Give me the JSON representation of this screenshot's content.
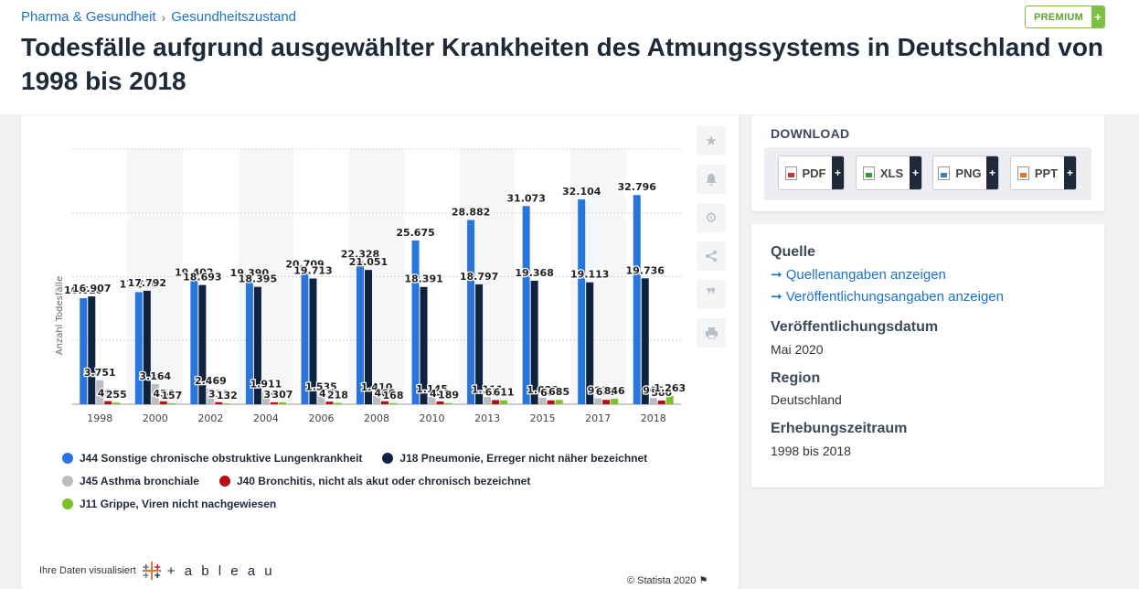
{
  "breadcrumb": {
    "first": "Pharma & Gesundheit",
    "second": "Gesundheitszustand",
    "separator": "›"
  },
  "premium": {
    "label": "PREMIUM",
    "plus": "+"
  },
  "title": "Todesfälle aufgrund ausgewählter Krankheiten des Atmungssystems in Deutschland von 1998 bis 2018",
  "chart_data": {
    "type": "bar",
    "title": "",
    "xlabel": "",
    "ylabel": "Anzahl Todesfälle",
    "ylim": [
      0,
      40000
    ],
    "grid": true,
    "categories": [
      "1998",
      "2000",
      "2002",
      "2004",
      "2006",
      "2008",
      "2010",
      "2013",
      "2015",
      "2017",
      "2018"
    ],
    "series": [
      {
        "name": "J44 Sonstige chronische obstruktive Lungenkrankheit",
        "color": "#2876dd",
        "values": [
          16620,
          17570,
          19402,
          19390,
          20709,
          22328,
          25675,
          28882,
          31073,
          32104,
          32796
        ],
        "labels": [
          "16.620",
          "17.570",
          "19.402",
          "19.390",
          "20.709",
          "22.328",
          "25.675",
          "28.882",
          "31.073",
          "32.104",
          "32.796"
        ]
      },
      {
        "name": "J18 Pneumonie, Erreger nicht näher bezeichnet",
        "color": "#0f2341",
        "values": [
          16907,
          17792,
          18693,
          18395,
          19713,
          21051,
          18391,
          18797,
          19368,
          19113,
          19736
        ],
        "labels": [
          "16.907",
          "17.792",
          "18.693",
          "18.395",
          "19.713",
          "21.051",
          "18.391",
          "18.797",
          "19.368",
          "19.113",
          "19.736"
        ]
      },
      {
        "name": "J45 Asthma bronchiale",
        "color": "#b9bcc0",
        "values": [
          3751,
          3164,
          2469,
          1911,
          1535,
          1410,
          1145,
          1111,
          1022,
          923,
          966
        ],
        "labels": [
          "3.751",
          "3.164",
          "2.469",
          "1.911",
          "1.535",
          "1.410",
          "1.145",
          "1.111",
          "1.022",
          "923",
          "966"
        ]
      },
      {
        "name": "J40 Bronchitis, nicht als akut oder chronisch bezeichnet",
        "color": "#b01116",
        "values": [
          491,
          454,
          331,
          303,
          411,
          466,
          441,
          651,
          606,
          688,
          580
        ],
        "labels": [
          "491",
          "454",
          "331",
          "303",
          "411",
          "466",
          "441",
          "651",
          "606",
          "688",
          "580"
        ]
      },
      {
        "name": "J11 Grippe, Viren nicht nachgewiesen",
        "color": "#7fbf2a",
        "values": [
          255,
          157,
          132,
          307,
          218,
          168,
          189,
          611,
          685,
          846,
          1263
        ],
        "labels": [
          "255",
          "157",
          "132",
          "307",
          "218",
          "168",
          "189",
          "611",
          "685",
          "846",
          "1.263"
        ]
      }
    ]
  },
  "footer": {
    "visualized": "Ihre Daten visualisiert",
    "brand": "+ a b l e a u",
    "copyright": "© Statista 2020"
  },
  "download": {
    "title": "DOWNLOAD",
    "buttons": [
      {
        "label": "PDF",
        "icon": "pdf-file-icon"
      },
      {
        "label": "XLS",
        "icon": "xls-file-icon"
      },
      {
        "label": "PNG",
        "icon": "png-file-icon"
      },
      {
        "label": "PPT",
        "icon": "ppt-file-icon"
      }
    ],
    "plus": "+"
  },
  "info": {
    "source_heading": "Quelle",
    "source_link": "➞ Quellenangaben anzeigen",
    "publication_link": "➞ Veröffentlichungsangaben anzeigen",
    "date_heading": "Veröffentlichungsdatum",
    "date_value": "Mai 2020",
    "region_heading": "Region",
    "region_value": "Deutschland",
    "period_heading": "Erhebungszeitraum",
    "period_value": "1998 bis 2018"
  },
  "tools": [
    "star-icon",
    "bell-icon",
    "gear-icon",
    "share-icon",
    "quote-icon",
    "print-icon"
  ]
}
